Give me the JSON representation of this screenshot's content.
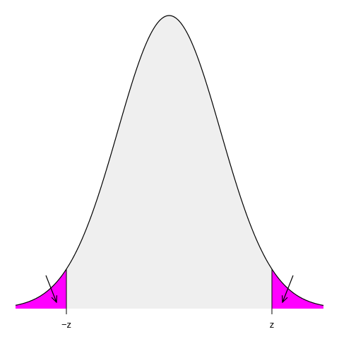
{
  "labels": {
    "left": "−z",
    "right": "z"
  }
}
